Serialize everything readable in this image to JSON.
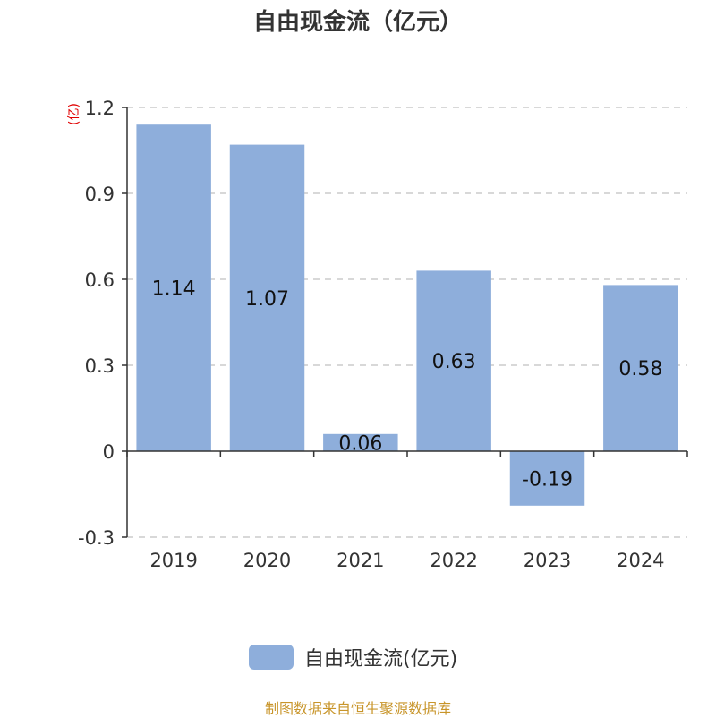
{
  "title": "自由现金流（亿元）",
  "unit_label": "(亿)",
  "legend_label": "自由现金流(亿元)",
  "source_text": "制图数据来自恒生聚源数据库",
  "colors": {
    "bar": "#8eaedb",
    "axis": "#333333",
    "grid": "#cccccc",
    "unit": "#e00000",
    "source": "#c8952a"
  },
  "chart_data": {
    "type": "bar",
    "title": "自由现金流（亿元）",
    "categories": [
      "2019",
      "2020",
      "2021",
      "2022",
      "2023",
      "2024"
    ],
    "series": [
      {
        "name": "自由现金流(亿元)",
        "values": [
          1.14,
          1.07,
          0.06,
          0.63,
          -0.19,
          0.58
        ]
      }
    ],
    "data_labels": [
      "1.14",
      "1.07",
      "0.06",
      "0.63",
      "-0.19",
      "0.58"
    ],
    "yticks": [
      -0.3,
      0,
      0.3,
      0.6,
      0.9,
      1.2
    ],
    "ytick_labels": [
      "-0.3",
      "0",
      "0.3",
      "0.6",
      "0.9",
      "1.2"
    ],
    "ylim": [
      -0.3,
      1.2
    ],
    "ylabel": "(亿)",
    "grid": true,
    "legend": "bottom-center"
  }
}
